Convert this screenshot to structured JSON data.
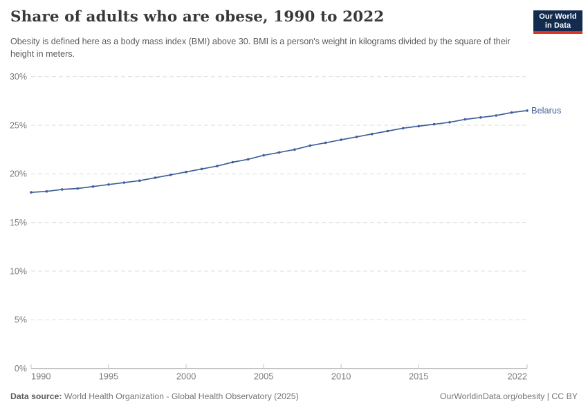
{
  "header": {
    "title": "Share of adults who are obese, 1990 to 2022",
    "subtitle": "Obesity is defined here as a body mass index (BMI) above 30. BMI is a person's weight in kilograms divided by the square of their height in meters.",
    "logo": {
      "line1": "Our World",
      "line2": "in Data",
      "bg_color": "#122b4e",
      "accent_color": "#dc3424"
    }
  },
  "chart_data": {
    "type": "line",
    "title": "Share of adults who are obese, 1990 to 2022",
    "xlabel": "",
    "ylabel": "",
    "xlim": [
      1990,
      2022
    ],
    "ylim": [
      0,
      30
    ],
    "x_ticks": [
      1990,
      1995,
      2000,
      2005,
      2010,
      2015,
      2022
    ],
    "y_ticks": [
      0,
      5,
      10,
      15,
      20,
      25,
      30
    ],
    "y_tick_suffix": "%",
    "grid": "horizontal-dashed",
    "legend_position": "end-of-line-label",
    "series": [
      {
        "name": "Belarus",
        "color": "#3e5f9a",
        "x": [
          1990,
          1991,
          1992,
          1993,
          1994,
          1995,
          1996,
          1997,
          1998,
          1999,
          2000,
          2001,
          2002,
          2003,
          2004,
          2005,
          2006,
          2007,
          2008,
          2009,
          2010,
          2011,
          2012,
          2013,
          2014,
          2015,
          2016,
          2017,
          2018,
          2019,
          2020,
          2021,
          2022
        ],
        "values": [
          18.1,
          18.2,
          18.4,
          18.5,
          18.7,
          18.9,
          19.1,
          19.3,
          19.6,
          19.9,
          20.2,
          20.5,
          20.8,
          21.2,
          21.5,
          21.9,
          22.2,
          22.5,
          22.9,
          23.2,
          23.5,
          23.8,
          24.1,
          24.4,
          24.7,
          24.9,
          25.1,
          25.3,
          25.6,
          25.8,
          26.0,
          26.3,
          26.5
        ]
      }
    ],
    "colors": {
      "gridline": "#dcdcdc",
      "axis_line": "#a1a1a1",
      "tick_mark": "#c2c2c2",
      "tick_label": "#7d7d7d"
    }
  },
  "footer": {
    "datasource_label": "Data source:",
    "datasource": "World Health Organization - Global Health Observatory (2025)",
    "link": "OurWorldinData.org/obesity | CC BY"
  }
}
